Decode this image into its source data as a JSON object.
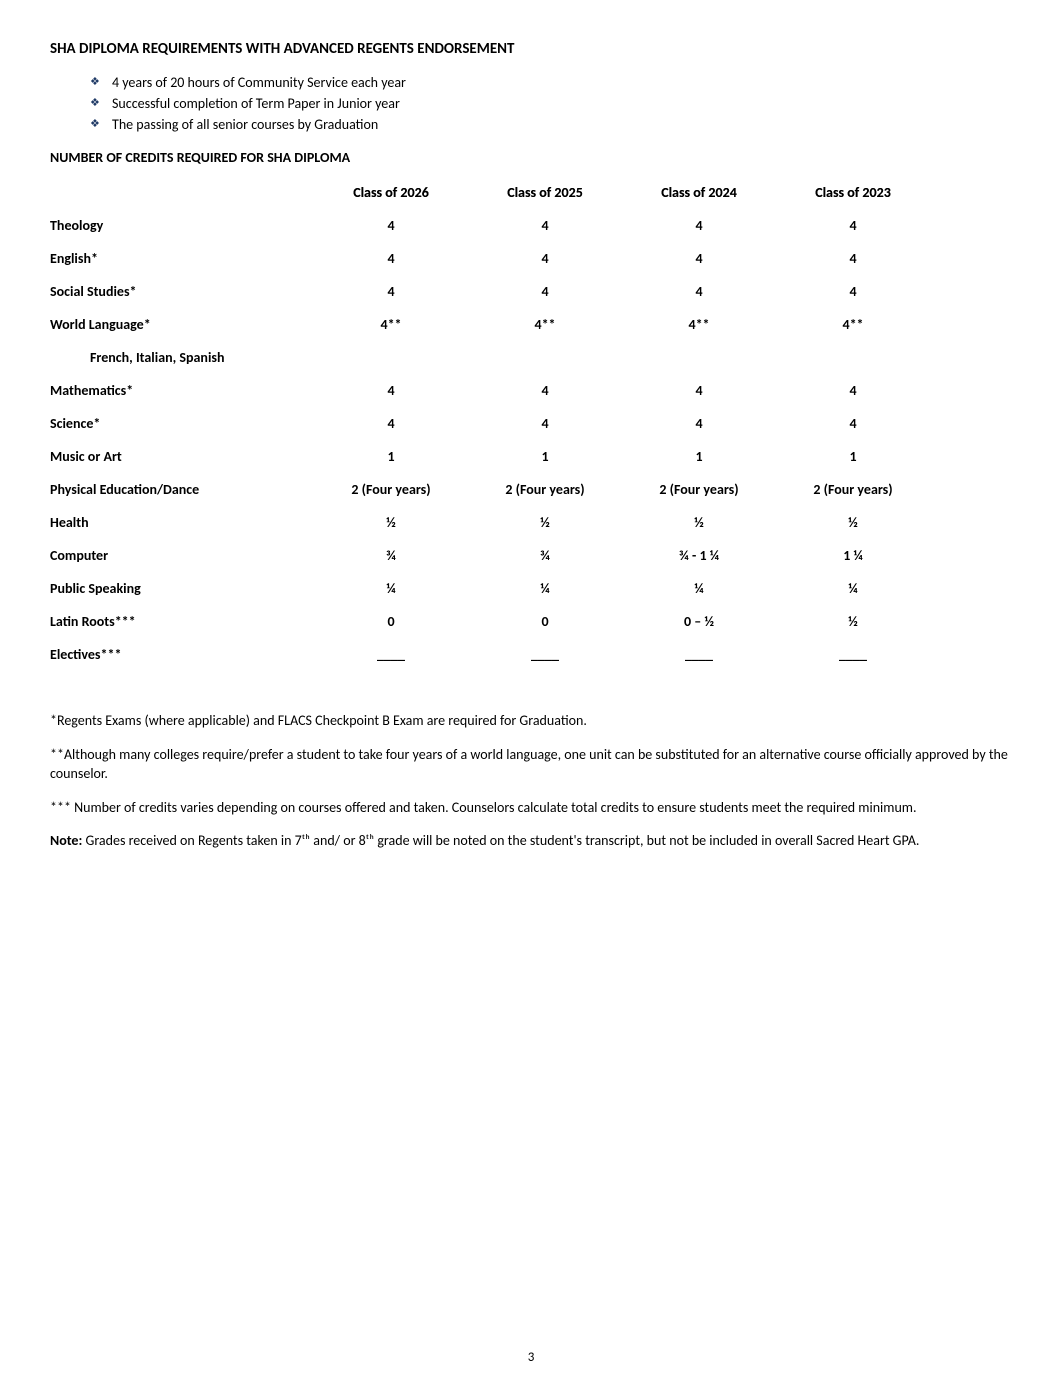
{
  "title": "SHA DIPLOMA REQUIREMENTS WITH ADVANCED REGENTS ENDORSEMENT",
  "bullets": [
    "4 years of 20 hours of Community Service each year",
    "Successful completion of Term Paper in Junior year",
    "The passing of all senior courses by Graduation"
  ],
  "credits_heading": "NUMBER OF CREDITS REQUIRED FOR SHA DIPLOMA",
  "columns": [
    "Class of 2026",
    "Class of 2025",
    "Class of 2024",
    "Class of 2023"
  ],
  "rows": [
    {
      "label": "Theology",
      "cells": [
        "4",
        "4",
        "4",
        "4"
      ]
    },
    {
      "label": "English*",
      "cells": [
        "4",
        "4",
        "4",
        "4"
      ]
    },
    {
      "label": "Social Studies*",
      "cells": [
        "4",
        "4",
        "4",
        "4"
      ]
    },
    {
      "label": "World Language*",
      "cells": [
        "4**",
        "4**",
        "4**",
        "4**"
      ]
    },
    {
      "label": "French, Italian, Spanish",
      "cells": [
        "",
        "",
        "",
        ""
      ],
      "indent": true
    },
    {
      "label": "Mathematics*",
      "cells": [
        "4",
        "4",
        "4",
        "4"
      ]
    },
    {
      "label": "Science*",
      "cells": [
        "4",
        "4",
        "4",
        "4"
      ]
    },
    {
      "label": "Music or Art",
      "cells": [
        "1",
        "1",
        "1",
        "1"
      ]
    },
    {
      "label": "Physical Education/Dance",
      "cells": [
        "2 (Four years)",
        "2 (Four years)",
        "2 (Four years)",
        "2 (Four years)"
      ]
    },
    {
      "label": "Health",
      "cells": [
        "½",
        "½",
        "½",
        "½"
      ]
    },
    {
      "label": "Computer",
      "cells": [
        "¾",
        "¾",
        "¾ - 1 ¼",
        "1 ¼"
      ]
    },
    {
      "label": "Public Speaking",
      "cells": [
        "¼",
        "¼",
        "¼",
        "¼"
      ]
    },
    {
      "label": "Latin Roots***",
      "cells": [
        "0",
        "0",
        "0 – ½",
        "½"
      ]
    },
    {
      "label": "Electives***",
      "cells": [
        "____",
        "____",
        "____",
        "____"
      ]
    }
  ],
  "footnotes": {
    "f1": "*Regents Exams (where applicable) and FLACS Checkpoint B Exam are required for Graduation.",
    "f2": "**Although many colleges require/prefer a student to take four years of a world language, one unit can be substituted for an alternative course officially approved by the counselor.",
    "f3": "*** Number of credits varies depending on courses offered and taken. Counselors calculate total credits to ensure students meet the required minimum.",
    "note_label": "Note:",
    "note_body": " Grades received on Regents taken in 7ᵗʰ and/ or 8ᵗʰ grade will be noted on the student's transcript, but not be  included in overall Sacred Heart GPA."
  },
  "page_number": "3",
  "colors": {
    "diamond": "#1f3a66",
    "text": "#000000",
    "bg": "#ffffff"
  }
}
